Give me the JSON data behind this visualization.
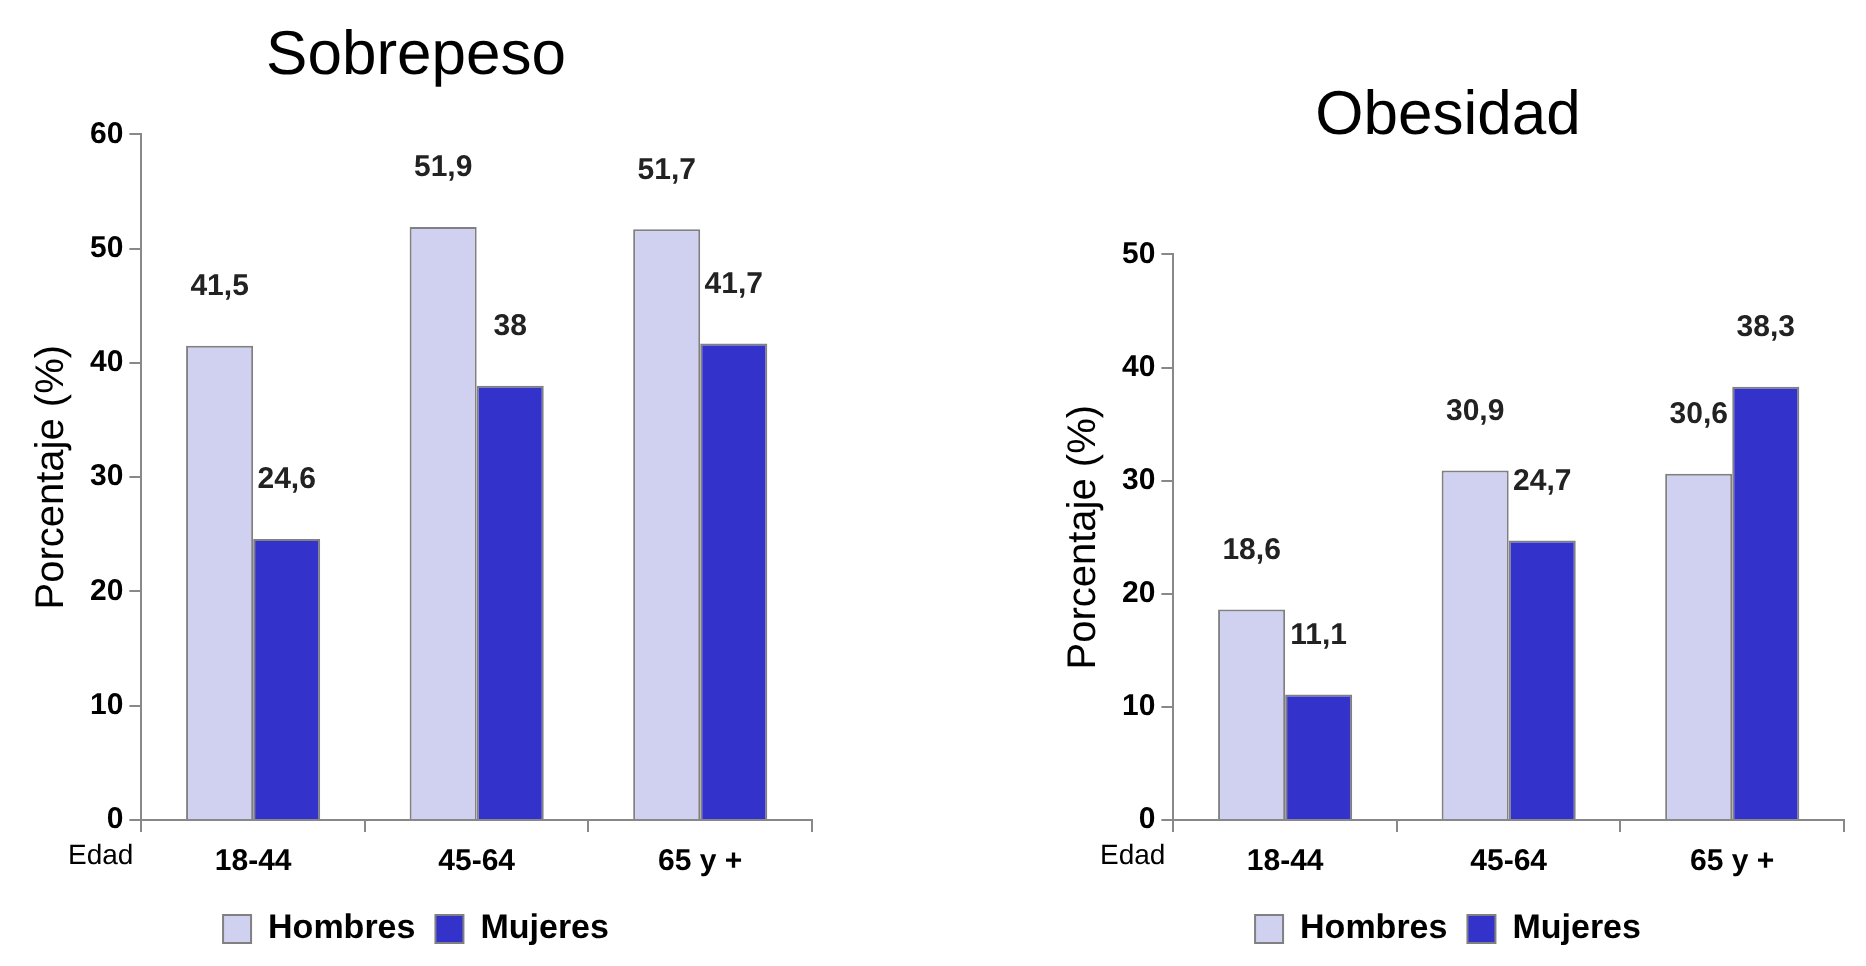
{
  "chart_data": [
    {
      "type": "bar",
      "title": "Sobrepeso",
      "xlabel": "Edad",
      "ylabel": "Porcentaje (%)",
      "categories": [
        "18-44",
        "45-64",
        "65 y +"
      ],
      "series": [
        {
          "name": "Hombres",
          "color": "#d0d0f0",
          "values": [
            41.5,
            51.9,
            51.7
          ],
          "value_labels": [
            "41,5",
            "51,9",
            "51,7"
          ]
        },
        {
          "name": "Mujeres",
          "color": "#3333cc",
          "values": [
            24.6,
            38,
            41.7
          ],
          "value_labels": [
            "24,6",
            "38",
            "41,7"
          ]
        }
      ],
      "ylim": [
        0,
        60
      ],
      "yticks": [
        0,
        10,
        20,
        30,
        40,
        50,
        60
      ],
      "grid": false,
      "legend": "bottom"
    },
    {
      "type": "bar",
      "title": "Obesidad",
      "xlabel": "Edad",
      "ylabel": "Porcentaje (%)",
      "categories": [
        "18-44",
        "45-64",
        "65 y +"
      ],
      "series": [
        {
          "name": "Hombres",
          "color": "#d0d0f0",
          "values": [
            18.6,
            30.9,
            30.6
          ],
          "value_labels": [
            "18,6",
            "30,9",
            "30,6"
          ]
        },
        {
          "name": "Mujeres",
          "color": "#3333cc",
          "values": [
            11.1,
            24.7,
            38.3
          ],
          "value_labels": [
            "11,1",
            "24,7",
            "38,3"
          ]
        }
      ],
      "ylim": [
        0,
        50
      ],
      "yticks": [
        0,
        10,
        20,
        30,
        40,
        50
      ],
      "grid": false,
      "legend": "bottom"
    }
  ]
}
